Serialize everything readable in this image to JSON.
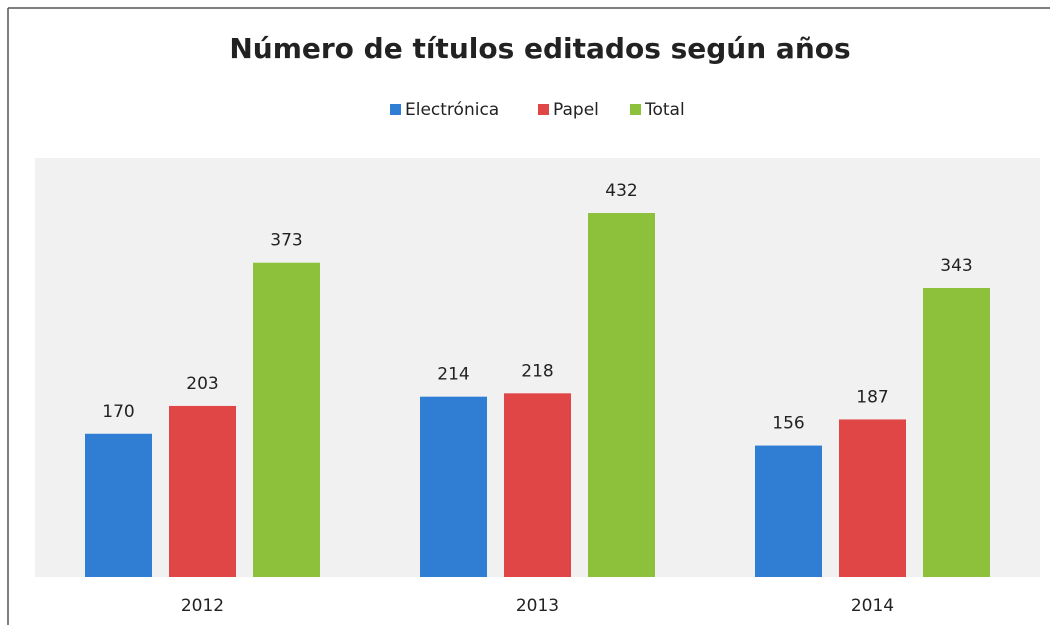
{
  "chart_data": {
    "type": "bar",
    "title": "Número de títulos editados según años",
    "categories": [
      "2012",
      "2013",
      "2014"
    ],
    "series": [
      {
        "name": "Electrónica",
        "color": "#2f7ed3",
        "values": [
          170,
          214,
          156
        ]
      },
      {
        "name": "Papel",
        "color": "#e04646",
        "values": [
          203,
          218,
          187
        ]
      },
      {
        "name": "Total",
        "color": "#8dc13c",
        "values": [
          373,
          432,
          343
        ]
      }
    ],
    "legend": "top"
  }
}
